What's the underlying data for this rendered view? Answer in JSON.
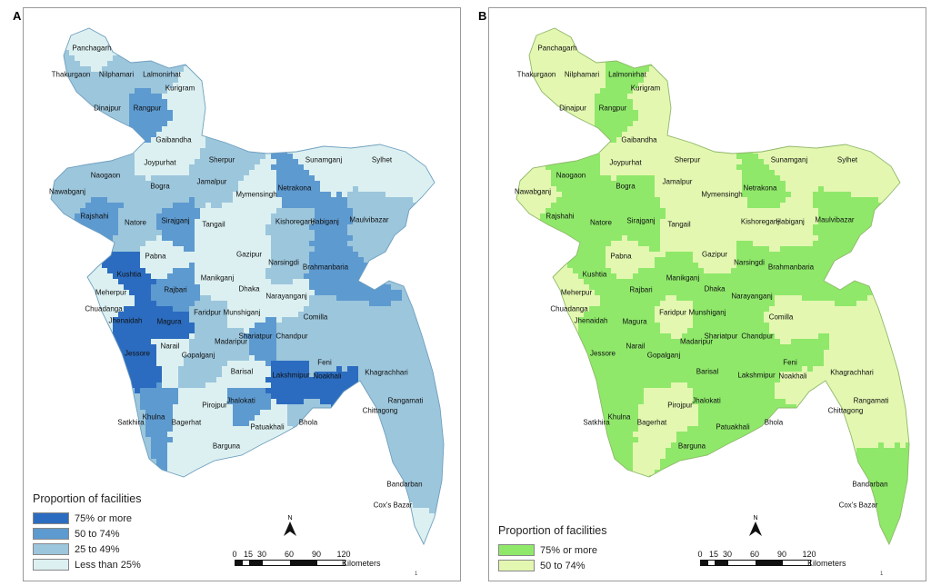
{
  "panels": [
    {
      "letter": "A",
      "legend": {
        "title": "Proportion of facilities",
        "items": [
          {
            "label": "75% or more",
            "color": "#2b6cc0"
          },
          {
            "label": "50 to 74%",
            "color": "#5d9ad0"
          },
          {
            "label": "25 to 49%",
            "color": "#9cc6dc"
          },
          {
            "label": "Less than 25%",
            "color": "#dcf0f1"
          }
        ]
      },
      "districts": [
        "Panchagarh",
        "Thakurgaon",
        "Nilphamari",
        "Lalmonirhat",
        "Kurigram",
        "Dinajpur",
        "Rangpur",
        "Gaibandha",
        "Joypurhat",
        "Sherpur",
        "Naogaon",
        "Bogra",
        "Jamalpur",
        "Sunamganj",
        "Sylhet",
        "Netrakona",
        "Mymensingh",
        "Nawabganj",
        "Rajshahi",
        "Natore",
        "Sirajganj",
        "Tangail",
        "Kishoreganj",
        "Habiganj",
        "Maulvibazar",
        "Pabna",
        "Gazipur",
        "Narsingdi",
        "Brahmanbaria",
        "Kushtia",
        "Manikganj",
        "Meherpur",
        "Dhaka",
        "Narayanganj",
        "Rajbari",
        "Chuadanga",
        "Jhenaidah",
        "Magura",
        "Faridpur",
        "Munshiganj",
        "Comilla",
        "Narail",
        "Madaripur",
        "Shariatpur",
        "Chandpur",
        "Jessore",
        "Gopalganj",
        "Feni",
        "Khagrachhari",
        "Barisal",
        "Lakshmipur",
        "Noakhali",
        "Rangamati",
        "Jhalokati",
        "Pirojpur",
        "Satkhira",
        "Khulna",
        "Bagerhat",
        "Patuakhali",
        "Bhola",
        "Chittagong",
        "Barguna",
        "Bandarban",
        "Cox's Bazar"
      ]
    },
    {
      "letter": "B",
      "legend": {
        "title": "Proportion of facilities",
        "items": [
          {
            "label": "75% or more",
            "color": "#8fe86a"
          },
          {
            "label": "50 to 74%",
            "color": "#e3f7b0"
          }
        ]
      },
      "districts": [
        "Panchagarh",
        "Thakurgaon",
        "Nilphamari",
        "Lalmonirhat",
        "Kurigram",
        "Dinajpur",
        "Rangpur",
        "Gaibandha",
        "Joypurhat",
        "Sherpur",
        "Naogaon",
        "Bogra",
        "Jamalpur",
        "Sunamganj",
        "Sylhet",
        "Netrakona",
        "Mymensingh",
        "Nawabganj",
        "Rajshahi",
        "Natore",
        "Sirajganj",
        "Tangail",
        "Kishoreganj",
        "Habiganj",
        "Maulvibazar",
        "Pabna",
        "Gazipur",
        "Narsingdi",
        "Brahmanbaria",
        "Kushtia",
        "Manikganj",
        "Meherpur",
        "Dhaka",
        "Narayanganj",
        "Rajbari",
        "Chuadanga",
        "Jhenaidah",
        "Magura",
        "Faridpur",
        "Munshiganj",
        "Comilla",
        "Narail",
        "Madaripur",
        "Shariatpur",
        "Chandpur",
        "Jessore",
        "Gopalganj",
        "Feni",
        "Khagrachhari",
        "Barisal",
        "Lakshmipur",
        "Noakhali",
        "Rangamati",
        "Jhalokati",
        "Pirojpur",
        "Satkhira",
        "Khulna",
        "Bagerhat",
        "Patuakhali",
        "Bhola",
        "Chittagong",
        "Barguna",
        "Bandarban",
        "Cox's Bazar"
      ]
    }
  ],
  "scale": {
    "ticks": [
      "0",
      "15",
      "30",
      "60",
      "90",
      "120"
    ],
    "unit": "Kilometers"
  },
  "north_label": "N",
  "mark": "1"
}
